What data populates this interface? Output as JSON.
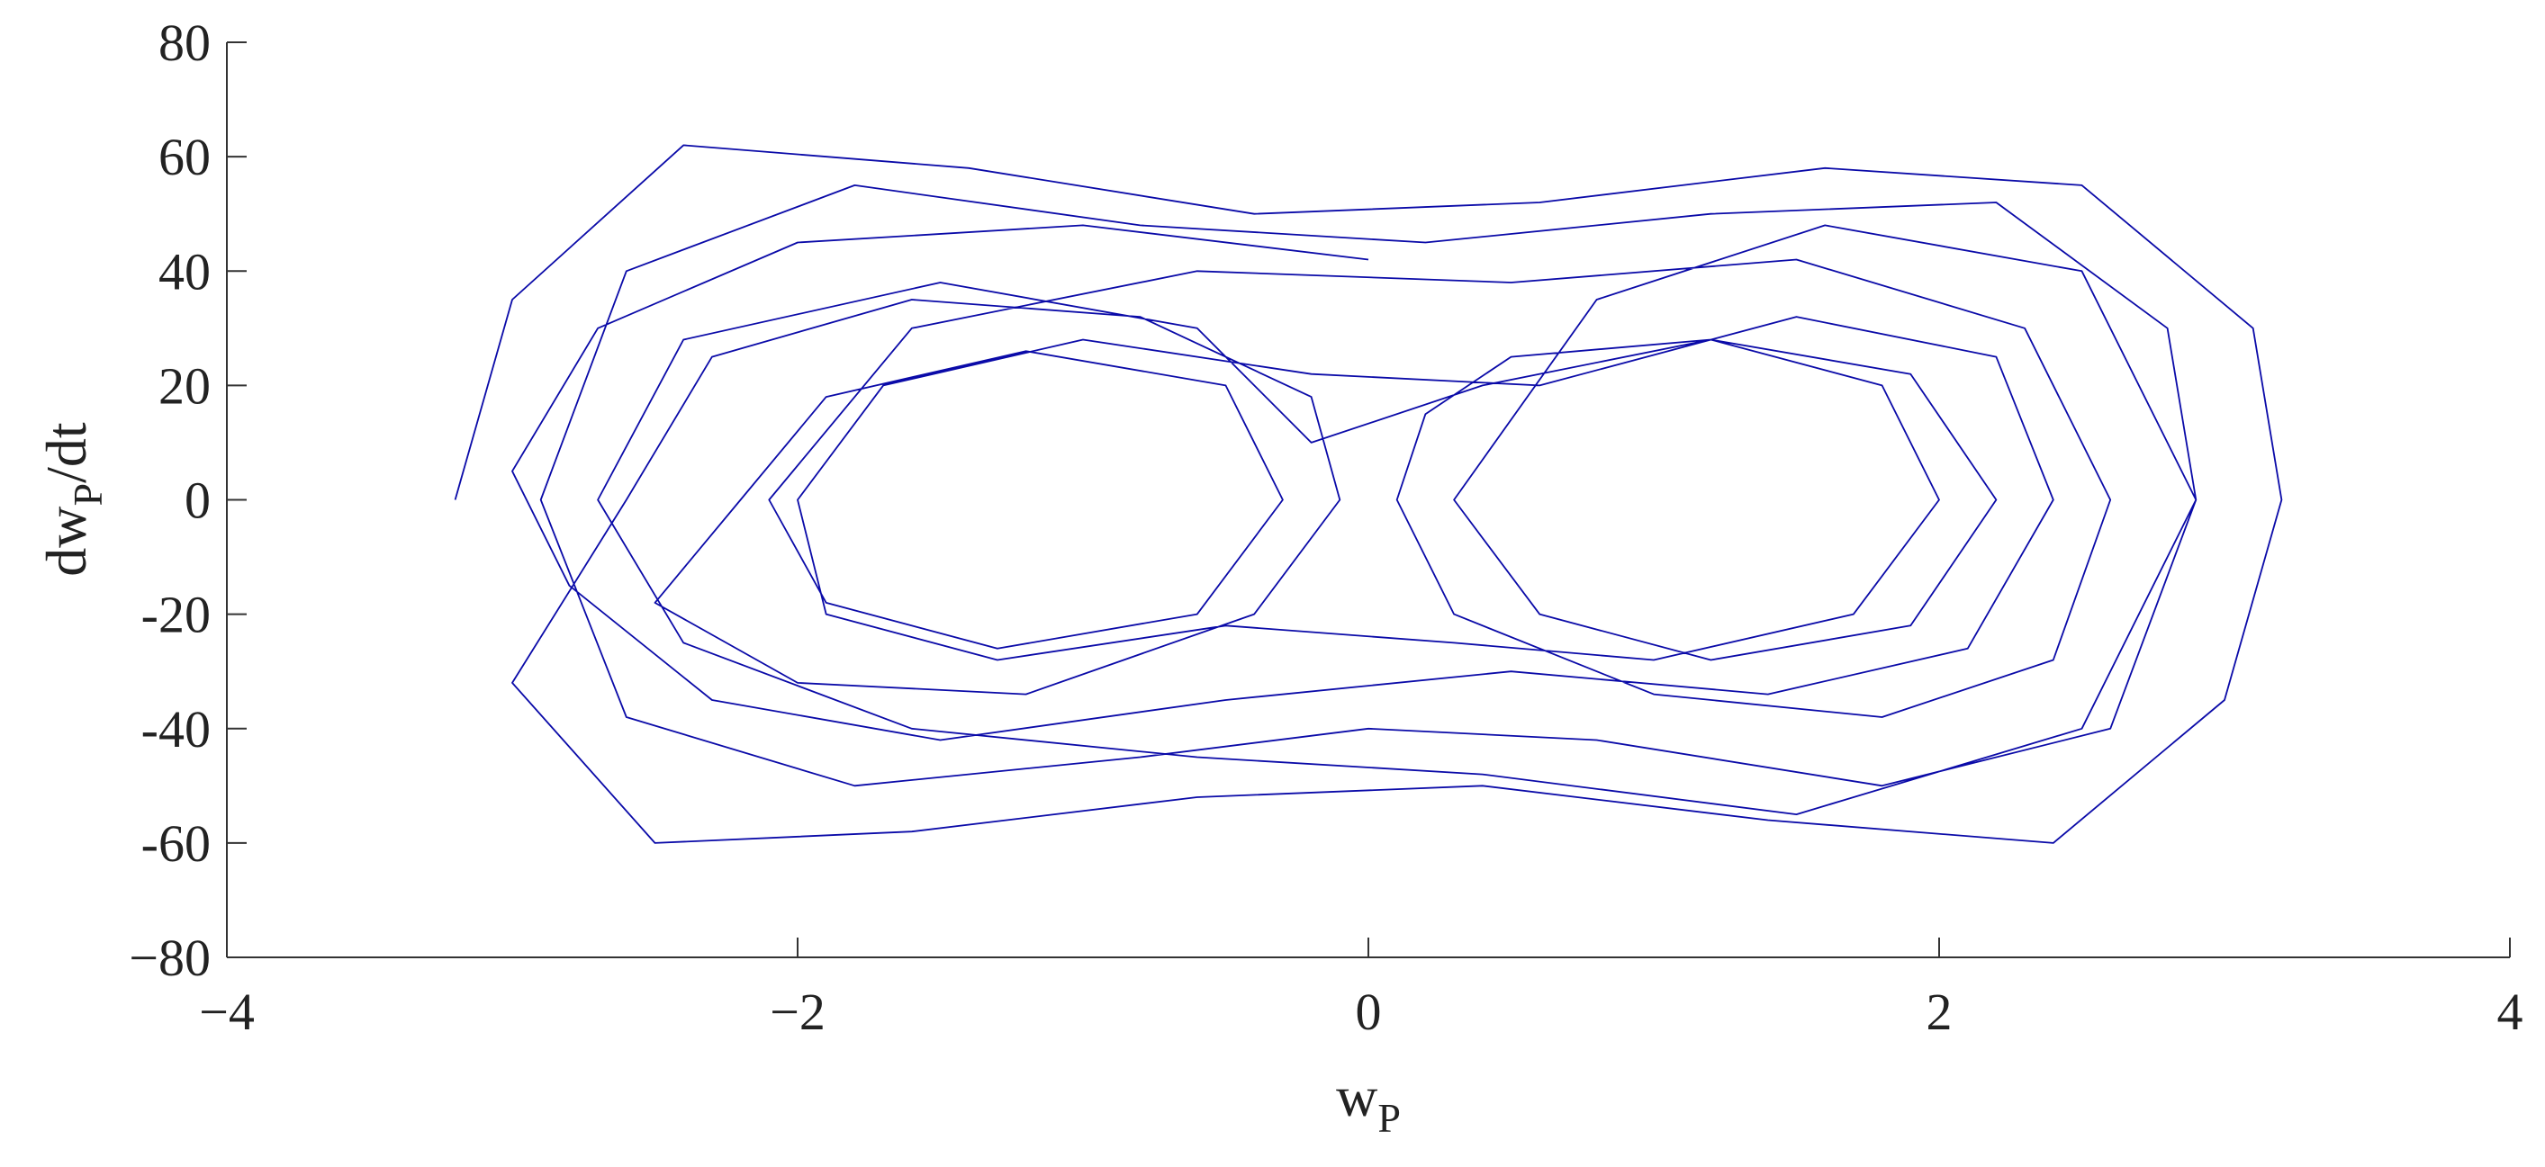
{
  "chart_data": {
    "type": "line",
    "xlabel": [
      "w",
      "P"
    ],
    "ylabel": [
      "dw",
      "P",
      "/dt"
    ],
    "color": "#0a0aa8",
    "xlim": [
      -4,
      4
    ],
    "ylim": [
      -80,
      80
    ],
    "xticks": [
      {
        "value": -4,
        "label": "−4"
      },
      {
        "value": -2,
        "label": "−2"
      },
      0,
      2,
      4
    ],
    "yticks": [
      {
        "value": -80,
        "label": "−80"
      },
      -60,
      -40,
      -20,
      0,
      20,
      40,
      60,
      80
    ],
    "x": [
      -3.2,
      -3.0,
      -2.4,
      -1.4,
      -0.4,
      0.6,
      1.6,
      2.5,
      3.1,
      3.2,
      3.0,
      2.4,
      1.4,
      0.4,
      -0.6,
      -1.6,
      -2.5,
      -3.0,
      -2.6,
      -2.3,
      -1.6,
      -0.8,
      -0.2,
      -0.1,
      -0.4,
      -1.2,
      -2.0,
      -2.5,
      -2.2,
      -1.9,
      -1.2,
      -0.5,
      -0.3,
      -0.6,
      -1.3,
      -1.9,
      -2.1,
      -1.6,
      -0.6,
      0.5,
      1.5,
      2.3,
      2.6,
      2.4,
      1.8,
      1.0,
      0.3,
      0.1,
      0.2,
      0.5,
      1.2,
      1.9,
      2.2,
      1.9,
      1.2,
      0.6,
      0.3,
      0.8,
      1.6,
      2.5,
      2.9,
      2.6,
      1.8,
      0.8,
      0.0,
      -0.8,
      -1.8,
      -2.6,
      -2.9,
      -2.6,
      -1.8,
      -0.8,
      0.2,
      1.2,
      2.2,
      2.8,
      2.9,
      2.5,
      1.5,
      0.4,
      -0.6,
      -1.6,
      -2.4,
      -2.7,
      -2.4,
      -1.5,
      -0.6,
      -0.2,
      0.4,
      1.2,
      1.8,
      2.0,
      1.7,
      1.0,
      0.3,
      -0.5,
      -1.3,
      -1.9,
      -2.0,
      -1.7,
      -1.0,
      -0.2,
      0.6,
      1.5,
      2.2,
      2.4,
      2.1,
      1.4,
      0.5,
      -0.5,
      -1.5,
      -2.3,
      -2.8,
      -3.0,
      -2.7,
      -2.0,
      -1.0,
      0.0
    ],
    "values": [
      0,
      35,
      62,
      58,
      50,
      52,
      58,
      55,
      30,
      0,
      -35,
      -60,
      -56,
      -50,
      -52,
      -58,
      -60,
      -32,
      0,
      25,
      35,
      32,
      18,
      0,
      -20,
      -34,
      -32,
      -18,
      0,
      18,
      26,
      20,
      0,
      -20,
      -26,
      -18,
      0,
      30,
      40,
      38,
      42,
      30,
      0,
      -28,
      -38,
      -34,
      -20,
      0,
      15,
      25,
      28,
      22,
      0,
      -22,
      -28,
      -20,
      0,
      35,
      48,
      40,
      0,
      -40,
      -50,
      -42,
      -40,
      -45,
      -50,
      -38,
      0,
      40,
      55,
      48,
      45,
      50,
      52,
      30,
      0,
      -40,
      -55,
      -48,
      -45,
      -40,
      -25,
      0,
      28,
      38,
      30,
      10,
      20,
      28,
      20,
      0,
      -20,
      -28,
      -25,
      -22,
      -28,
      -20,
      0,
      20,
      28,
      22,
      20,
      32,
      25,
      0,
      -26,
      -34,
      -30,
      -35,
      -42,
      -35,
      -15,
      5,
      30,
      45,
      48,
      42
    ]
  }
}
